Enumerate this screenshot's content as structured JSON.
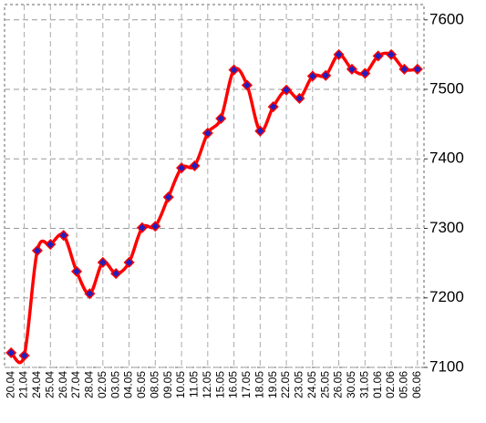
{
  "chart_data": {
    "type": "line",
    "categories": [
      "20.04",
      "21.04",
      "24.04",
      "25.04",
      "26.04",
      "27.04",
      "28.04",
      "02.05",
      "03.05",
      "04.05",
      "05.05",
      "08.05",
      "09.05",
      "10.05",
      "11.05",
      "12.05",
      "15.05",
      "16.05",
      "17.05",
      "18.05",
      "19.05",
      "22.05",
      "23.05",
      "24.05",
      "25.05",
      "26.05",
      "30.05",
      "31.05",
      "01.06",
      "02.06",
      "05.06",
      "06.06"
    ],
    "series": [
      {
        "color": "#ff0000",
        "marker_color": "#2020c0",
        "values": [
          7121,
          7117,
          7268,
          7277,
          7290,
          7238,
          7206,
          7251,
          7235,
          7251,
          7301,
          7303,
          7345,
          7387,
          7390,
          7437,
          7458,
          7528,
          7506,
          7440,
          7475,
          7499,
          7487,
          7519,
          7520,
          7550,
          7529,
          7523,
          7548,
          7550,
          7529,
          7529
        ]
      }
    ],
    "ylim": [
      7100,
      7622
    ],
    "yticks": [
      7100,
      7200,
      7300,
      7400,
      7500,
      7600
    ],
    "grid": true,
    "y_axis_side": "right"
  }
}
